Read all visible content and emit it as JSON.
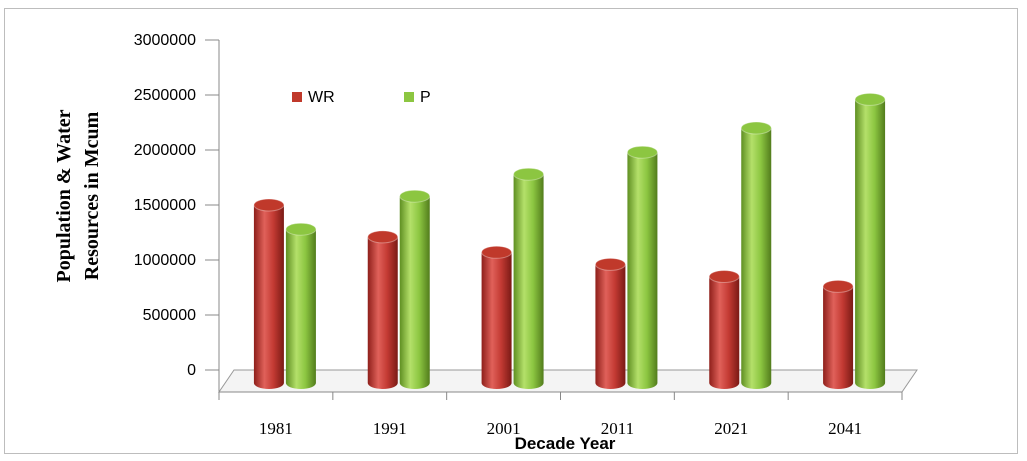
{
  "chart_data": {
    "type": "bar",
    "categories": [
      "1981",
      "1991",
      "2001",
      "2011",
      "2021",
      "2041"
    ],
    "series": [
      {
        "name": "WR",
        "color": "#c0392b",
        "values": [
          1500000,
          1210000,
          1070000,
          960000,
          850000,
          760000
        ]
      },
      {
        "name": "P",
        "color": "#8cc641",
        "values": [
          1280000,
          1580000,
          1780000,
          1980000,
          2200000,
          2460000
        ]
      }
    ],
    "ylabel_lines": [
      "Population & Water",
      "Resources in Mcum"
    ],
    "xlabel": "Decade Year",
    "ylim": [
      0,
      3000000
    ],
    "yticks": [
      "0",
      "500000",
      "1000000",
      "1500000",
      "2000000",
      "2500000",
      "3000000"
    ],
    "grid": false,
    "legend_position": "top-left",
    "style": "3d-cylinder"
  }
}
